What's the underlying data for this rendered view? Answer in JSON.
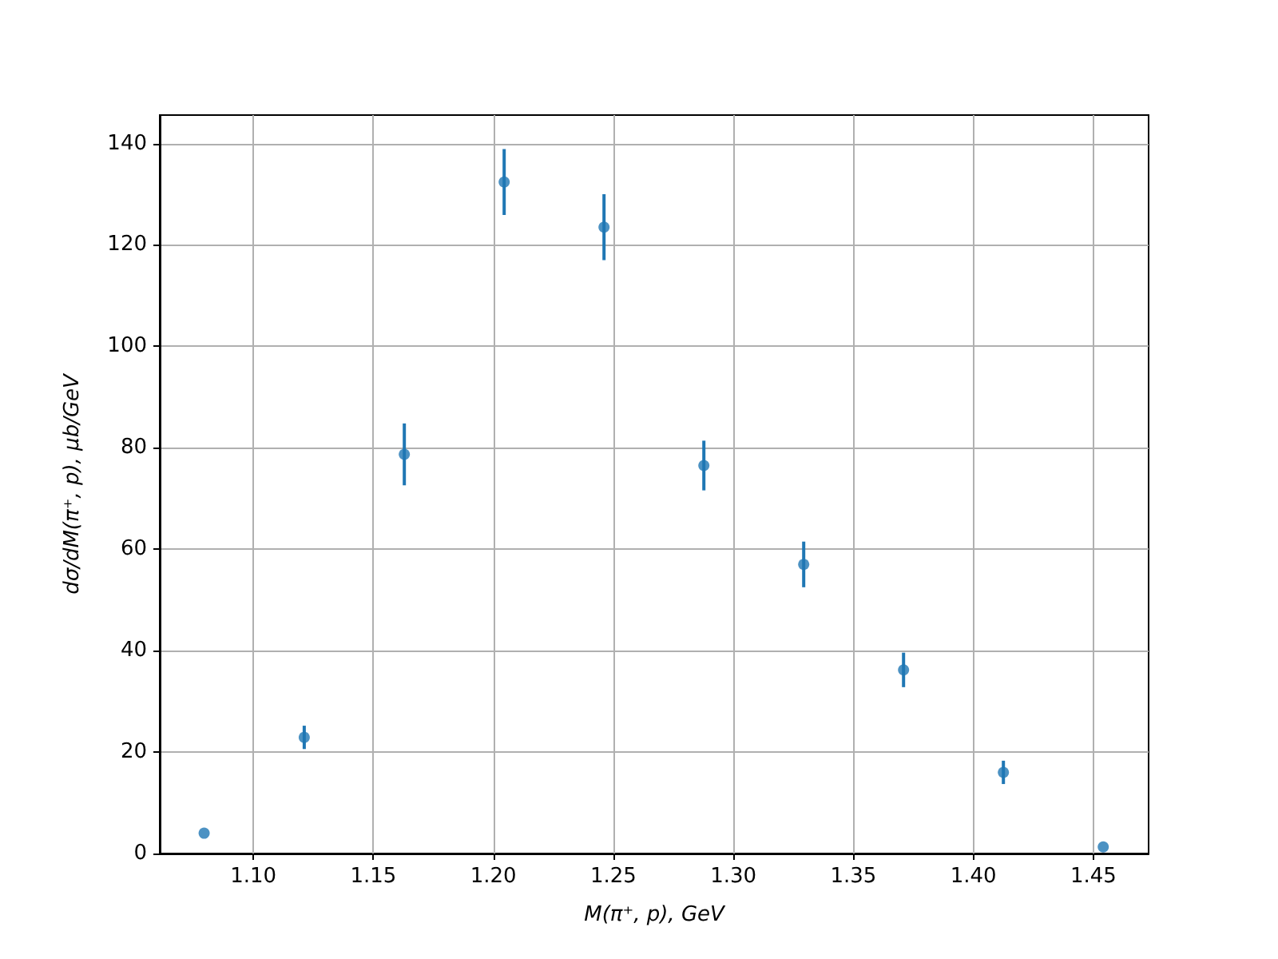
{
  "chart_data": {
    "type": "scatter",
    "xlabel": "M(π⁺, p), GeV",
    "ylabel": "dσ/dM(π⁺, p), μb/GeV",
    "x": [
      1.0795,
      1.1212,
      1.1629,
      1.2045,
      1.2461,
      1.2877,
      1.3293,
      1.3709,
      1.4125,
      1.4541
    ],
    "series": [
      {
        "color": "#1f77b4",
        "values": [
          4.0,
          22.9,
          78.7,
          132.4,
          123.5,
          76.5,
          57.0,
          36.2,
          16.0,
          1.3
        ],
        "errors": [
          null,
          2.3,
          6.1,
          6.5,
          6.5,
          4.9,
          4.5,
          3.4,
          2.3,
          null
        ]
      }
    ],
    "xlim": [
      1.061,
      1.473
    ],
    "xticks": [
      {
        "value": 1.1,
        "label": "1.10"
      },
      {
        "value": 1.15,
        "label": "1.15"
      },
      {
        "value": 1.2,
        "label": "1.20"
      },
      {
        "value": 1.25,
        "label": "1.25"
      },
      {
        "value": 1.3,
        "label": "1.30"
      },
      {
        "value": 1.35,
        "label": "1.35"
      },
      {
        "value": 1.4,
        "label": "1.40"
      },
      {
        "value": 1.45,
        "label": "1.45"
      }
    ],
    "ylim": [
      0,
      145.6
    ],
    "yticks": [
      0,
      20,
      40,
      60,
      80,
      100,
      120,
      140
    ],
    "grid": true,
    "marker": "circle"
  }
}
